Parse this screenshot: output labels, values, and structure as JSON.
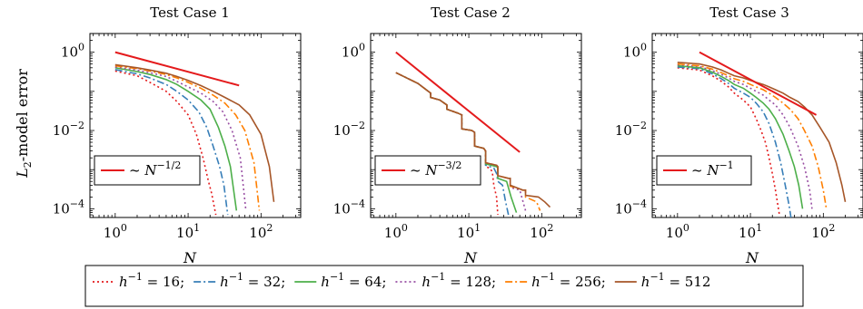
{
  "chart_data": [
    {
      "type": "line",
      "title": "Test Case 1",
      "xlabel": "N",
      "ylabel": "L2-model error",
      "xscale": "log",
      "yscale": "log",
      "xlim": [
        0.45,
        350
      ],
      "ylim": [
        6e-05,
        3
      ],
      "xticks": [
        "10^0",
        "10^1",
        "10^2"
      ],
      "yticks": [
        "10^0",
        "10^-2",
        "10^-4"
      ],
      "reference": {
        "label": "~ N^-1/2",
        "slope": -0.5,
        "x": [
          1,
          50
        ],
        "y": [
          1.0,
          0.1414
        ]
      },
      "legend_placement": "bottom-left",
      "series": [
        {
          "name": "h^-1 = 16",
          "x": [
            1,
            2,
            3,
            5,
            7,
            10,
            13,
            16,
            19,
            21,
            24
          ],
          "y": [
            0.33,
            0.25,
            0.17,
            0.1,
            0.055,
            0.025,
            0.008,
            0.002,
            0.0005,
            0.00025,
            7e-05
          ]
        },
        {
          "name": "h^-1 = 32",
          "x": [
            1,
            2,
            3,
            5,
            7,
            10,
            14,
            18,
            22,
            27,
            31,
            35
          ],
          "y": [
            0.36,
            0.28,
            0.22,
            0.15,
            0.1,
            0.06,
            0.03,
            0.012,
            0.004,
            0.0012,
            0.0004,
            7e-05
          ]
        },
        {
          "name": "h^-1 = 64",
          "x": [
            1,
            2,
            3,
            5,
            7,
            10,
            15,
            20,
            26,
            32,
            38,
            46
          ],
          "y": [
            0.4,
            0.32,
            0.27,
            0.2,
            0.15,
            0.1,
            0.06,
            0.035,
            0.012,
            0.004,
            0.0012,
            9e-05
          ]
        },
        {
          "name": "h^-1 = 128",
          "x": [
            1,
            2,
            3,
            5,
            7,
            10,
            15,
            22,
            30,
            40,
            52,
            62
          ],
          "y": [
            0.42,
            0.35,
            0.3,
            0.24,
            0.18,
            0.13,
            0.09,
            0.055,
            0.03,
            0.01,
            0.002,
            9e-05
          ]
        },
        {
          "name": "h^-1 = 256",
          "x": [
            1,
            2,
            3,
            5,
            7,
            10,
            15,
            22,
            32,
            45,
            60,
            80,
            95
          ],
          "y": [
            0.45,
            0.38,
            0.33,
            0.27,
            0.22,
            0.17,
            0.12,
            0.08,
            0.05,
            0.025,
            0.01,
            0.0015,
            9e-05
          ]
        },
        {
          "name": "h^-1 = 512",
          "x": [
            1,
            2,
            3,
            5,
            7,
            10,
            15,
            22,
            32,
            50,
            70,
            100,
            130,
            150
          ],
          "y": [
            0.48,
            0.4,
            0.35,
            0.29,
            0.24,
            0.19,
            0.14,
            0.1,
            0.07,
            0.045,
            0.025,
            0.008,
            0.0012,
            0.00015
          ]
        }
      ]
    },
    {
      "type": "line",
      "title": "Test Case 2",
      "xlabel": "N",
      "ylabel": "",
      "xscale": "log",
      "yscale": "log",
      "xlim": [
        0.45,
        350
      ],
      "ylim": [
        6e-05,
        3
      ],
      "xticks": [
        "10^0",
        "10^1",
        "10^2"
      ],
      "yticks": [
        "10^0",
        "10^-2",
        "10^-4"
      ],
      "reference": {
        "label": "~ N^-3/2",
        "slope": -1.5,
        "x": [
          1,
          50
        ],
        "y": [
          1.0,
          0.0028
        ]
      },
      "legend_placement": "bottom-left",
      "series": [
        {
          "name": "h^-1 = 16",
          "x": [
            1,
            2,
            3,
            3,
            4,
            5,
            5,
            7,
            8,
            8,
            11,
            12,
            12,
            16,
            17,
            17,
            19,
            21,
            22,
            24,
            25
          ],
          "y": [
            0.3,
            0.16,
            0.09,
            0.07,
            0.06,
            0.045,
            0.035,
            0.028,
            0.025,
            0.011,
            0.01,
            0.009,
            0.004,
            0.0035,
            0.003,
            0.0012,
            0.0011,
            0.0009,
            0.0004,
            0.0002,
            7e-05
          ]
        },
        {
          "name": "h^-1 = 32",
          "x": [
            1,
            2,
            3,
            3,
            4,
            5,
            5,
            7,
            8,
            8,
            11,
            12,
            12,
            16,
            17,
            17,
            22,
            24,
            25,
            29,
            32,
            35
          ],
          "y": [
            0.3,
            0.16,
            0.09,
            0.07,
            0.06,
            0.045,
            0.035,
            0.028,
            0.025,
            0.011,
            0.01,
            0.009,
            0.004,
            0.0035,
            0.003,
            0.0013,
            0.0011,
            0.0008,
            0.0005,
            0.0004,
            0.00015,
            7e-05
          ]
        },
        {
          "name": "h^-1 = 64",
          "x": [
            1,
            2,
            3,
            3,
            4,
            5,
            5,
            7,
            8,
            8,
            11,
            12,
            12,
            16,
            17,
            17,
            24,
            25,
            25,
            33,
            38,
            45
          ],
          "y": [
            0.3,
            0.16,
            0.09,
            0.07,
            0.06,
            0.045,
            0.035,
            0.028,
            0.025,
            0.011,
            0.01,
            0.009,
            0.004,
            0.0035,
            0.003,
            0.0014,
            0.0012,
            0.0011,
            0.0006,
            0.0005,
            0.0002,
            8e-05
          ]
        },
        {
          "name": "h^-1 = 128",
          "x": [
            1,
            2,
            3,
            3,
            4,
            5,
            5,
            7,
            8,
            8,
            11,
            12,
            12,
            16,
            17,
            17,
            24,
            25,
            25,
            35,
            37,
            37,
            50,
            60
          ],
          "y": [
            0.3,
            0.16,
            0.09,
            0.07,
            0.06,
            0.045,
            0.035,
            0.028,
            0.025,
            0.011,
            0.01,
            0.009,
            0.004,
            0.0035,
            0.003,
            0.0015,
            0.0013,
            0.0012,
            0.0007,
            0.0006,
            0.0006,
            0.00035,
            0.0003,
            9e-05
          ]
        },
        {
          "name": "h^-1 = 256",
          "x": [
            1,
            2,
            3,
            3,
            4,
            5,
            5,
            7,
            8,
            8,
            11,
            12,
            12,
            16,
            17,
            17,
            24,
            25,
            25,
            35,
            37,
            37,
            55,
            60,
            60,
            85,
            95
          ],
          "y": [
            0.3,
            0.16,
            0.09,
            0.07,
            0.06,
            0.045,
            0.035,
            0.028,
            0.025,
            0.011,
            0.01,
            0.009,
            0.004,
            0.0035,
            0.003,
            0.0015,
            0.0013,
            0.0012,
            0.0007,
            0.0006,
            0.0006,
            0.00038,
            0.0003,
            0.0003,
            0.0002,
            0.00015,
            9e-05
          ]
        },
        {
          "name": "h^-1 = 512",
          "x": [
            1,
            2,
            3,
            3,
            4,
            5,
            5,
            7,
            8,
            8,
            11,
            12,
            12,
            16,
            17,
            17,
            24,
            25,
            25,
            35,
            37,
            37,
            55,
            60,
            60,
            90,
            110,
            130
          ],
          "y": [
            0.3,
            0.16,
            0.09,
            0.07,
            0.06,
            0.045,
            0.035,
            0.028,
            0.025,
            0.011,
            0.01,
            0.009,
            0.004,
            0.0035,
            0.003,
            0.0015,
            0.0013,
            0.0012,
            0.0007,
            0.0006,
            0.0006,
            0.0004,
            0.0003,
            0.0003,
            0.00022,
            0.0002,
            0.00015,
            0.00011
          ]
        }
      ]
    },
    {
      "type": "line",
      "title": "Test Case 3",
      "xlabel": "N",
      "ylabel": "",
      "xscale": "log",
      "yscale": "log",
      "xlim": [
        0.45,
        350
      ],
      "ylim": [
        6e-05,
        3
      ],
      "xticks": [
        "10^0",
        "10^1",
        "10^2"
      ],
      "yticks": [
        "10^0",
        "10^-2",
        "10^-4"
      ],
      "reference": {
        "label": "~ N^-1",
        "slope": -1.0,
        "x": [
          2,
          80
        ],
        "y": [
          1.0,
          0.025
        ]
      },
      "legend_placement": "bottom-left",
      "series": [
        {
          "name": "h^-1 = 16",
          "x": [
            1,
            2,
            3,
            4,
            5,
            6,
            8,
            10,
            12,
            14,
            16,
            18,
            20,
            22,
            25
          ],
          "y": [
            0.4,
            0.35,
            0.25,
            0.18,
            0.13,
            0.09,
            0.06,
            0.04,
            0.02,
            0.01,
            0.005,
            0.002,
            0.0008,
            0.0003,
            7e-05
          ]
        },
        {
          "name": "h^-1 = 32",
          "x": [
            1,
            2,
            3,
            4,
            5,
            6,
            8,
            10,
            12,
            15,
            18,
            22,
            26,
            30,
            34,
            36
          ],
          "y": [
            0.42,
            0.38,
            0.28,
            0.21,
            0.16,
            0.12,
            0.09,
            0.07,
            0.05,
            0.03,
            0.015,
            0.005,
            0.0015,
            0.0004,
            0.00012,
            6e-05
          ]
        },
        {
          "name": "h^-1 = 64",
          "x": [
            1,
            2,
            3,
            4,
            5,
            6,
            8,
            10,
            12,
            15,
            18,
            22,
            28,
            34,
            40,
            46,
            52
          ],
          "y": [
            0.45,
            0.4,
            0.31,
            0.24,
            0.19,
            0.15,
            0.12,
            0.09,
            0.07,
            0.05,
            0.035,
            0.02,
            0.008,
            0.003,
            0.0012,
            0.0004,
            0.0001
          ]
        },
        {
          "name": "h^-1 = 128",
          "x": [
            1,
            2,
            3,
            4,
            5,
            6,
            8,
            10,
            12,
            15,
            18,
            22,
            28,
            35,
            45,
            55,
            65,
            70
          ],
          "y": [
            0.48,
            0.43,
            0.34,
            0.27,
            0.22,
            0.18,
            0.15,
            0.12,
            0.1,
            0.08,
            0.06,
            0.045,
            0.025,
            0.012,
            0.004,
            0.0012,
            0.0003,
            0.0001
          ]
        },
        {
          "name": "h^-1 = 256",
          "x": [
            1,
            2,
            3,
            4,
            5,
            6,
            8,
            10,
            12,
            15,
            18,
            22,
            28,
            35,
            45,
            55,
            70,
            85,
            100,
            110
          ],
          "y": [
            0.5,
            0.45,
            0.37,
            0.3,
            0.25,
            0.21,
            0.18,
            0.15,
            0.13,
            0.11,
            0.09,
            0.07,
            0.05,
            0.035,
            0.02,
            0.01,
            0.004,
            0.0012,
            0.0003,
            0.0001
          ]
        },
        {
          "name": "h^-1 = 512",
          "x": [
            1,
            2,
            3,
            4,
            5,
            6,
            8,
            10,
            12,
            15,
            18,
            22,
            28,
            35,
            45,
            55,
            70,
            90,
            120,
            150,
            180,
            200
          ],
          "y": [
            0.55,
            0.5,
            0.42,
            0.35,
            0.29,
            0.25,
            0.22,
            0.19,
            0.17,
            0.15,
            0.13,
            0.11,
            0.09,
            0.07,
            0.055,
            0.04,
            0.025,
            0.012,
            0.005,
            0.0015,
            0.0004,
            0.00015
          ]
        }
      ]
    }
  ],
  "legend": {
    "items": [
      {
        "base": "h",
        "exp": "−1",
        "text": " = 16;",
        "color": "#e41a1c",
        "dash": "2,3"
      },
      {
        "base": "h",
        "exp": "−1",
        "text": " = 32;",
        "color": "#377eb8",
        "dash": "8,3,2,3"
      },
      {
        "base": "h",
        "exp": "−1",
        "text": " = 64;",
        "color": "#4daf4a",
        "dash": ""
      },
      {
        "base": "h",
        "exp": "−1",
        "text": " = 128;",
        "color": "#984ea3",
        "dash": "2,3"
      },
      {
        "base": "h",
        "exp": "−1",
        "text": " = 256;",
        "color": "#ff7f00",
        "dash": "8,3,2,3"
      },
      {
        "base": "h",
        "exp": "−1",
        "text": " = 512",
        "color": "#a65628",
        "dash": ""
      }
    ]
  },
  "reference_color": "#e41a1c",
  "ylabel_text": {
    "base": "L",
    "sub": "2",
    "rest": "-model error"
  }
}
